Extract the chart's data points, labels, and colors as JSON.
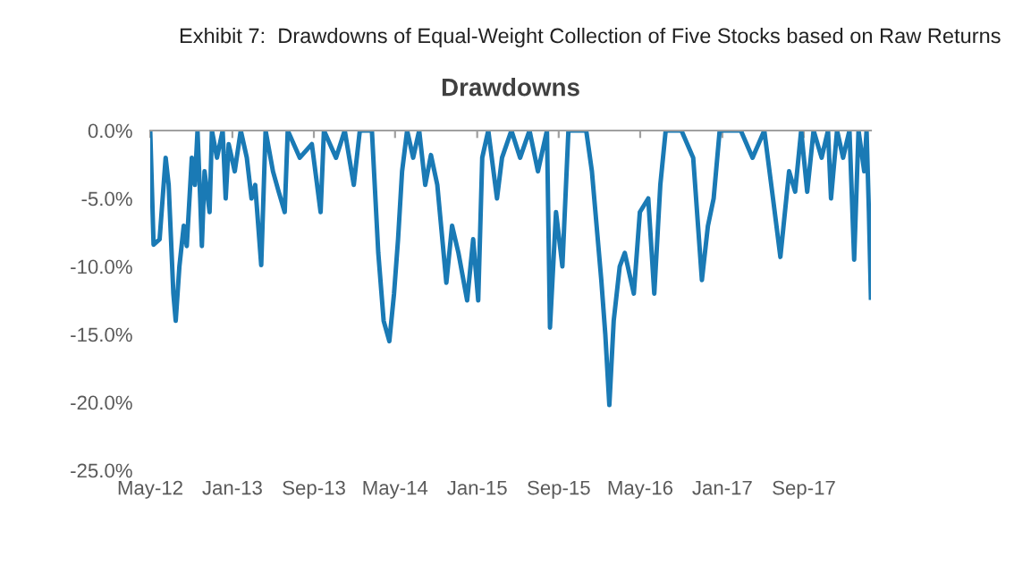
{
  "chart_data": {
    "type": "line",
    "title": "Exhibit 7:  Drawdowns of Equal-Weight Collection of Five Stocks based on Raw Returns",
    "subtitle": "Drawdowns",
    "x": [
      "2012-05-01",
      "2012-05-11",
      "2012-05-29",
      "2012-06-16",
      "2012-06-25",
      "2012-07-09",
      "2012-07-16",
      "2012-07-27",
      "2012-08-09",
      "2012-08-18",
      "2012-09-02",
      "2012-09-11",
      "2012-09-19",
      "2012-09-27",
      "2012-10-02",
      "2012-10-10",
      "2012-10-25",
      "2012-11-01",
      "2012-11-16",
      "2012-12-03",
      "2012-12-12",
      "2012-12-21",
      "2013-01-08",
      "2013-01-26",
      "2013-02-13",
      "2013-02-27",
      "2013-03-10",
      "2013-03-28",
      "2013-04-10",
      "2013-05-02",
      "2013-05-19",
      "2013-06-06",
      "2013-06-15",
      "2013-07-21",
      "2013-08-26",
      "2013-09-21",
      "2013-10-01",
      "2013-11-06",
      "2013-12-02",
      "2013-12-29",
      "2014-01-16",
      "2014-02-21",
      "2014-03-12",
      "2014-03-28",
      "2014-04-14",
      "2014-04-28",
      "2014-05-10",
      "2014-05-22",
      "2014-06-06",
      "2014-06-24",
      "2014-07-12",
      "2014-07-30",
      "2014-08-16",
      "2014-09-04",
      "2014-10-01",
      "2014-10-18",
      "2014-11-06",
      "2014-12-02",
      "2014-12-20",
      "2015-01-04",
      "2015-01-16",
      "2015-02-03",
      "2015-03-01",
      "2015-03-16",
      "2015-04-13",
      "2015-05-09",
      "2015-06-06",
      "2015-07-01",
      "2015-07-28",
      "2015-08-06",
      "2015-08-24",
      "2015-09-12",
      "2015-09-30",
      "2015-11-22",
      "2015-12-09",
      "2016-01-06",
      "2016-01-18",
      "2016-01-30",
      "2016-02-12",
      "2016-03-01",
      "2016-03-16",
      "2016-04-12",
      "2016-04-30",
      "2016-05-25",
      "2016-06-12",
      "2016-06-30",
      "2016-07-16",
      "2016-09-01",
      "2016-10-06",
      "2016-11-01",
      "2016-11-19",
      "2016-12-06",
      "2016-12-24",
      "2017-02-25",
      "2017-04-01",
      "2017-05-06",
      "2017-06-01",
      "2017-06-23",
      "2017-07-19",
      "2017-08-06",
      "2017-08-24",
      "2017-09-11",
      "2017-09-30",
      "2017-10-24",
      "2017-11-12",
      "2017-11-21",
      "2017-12-09",
      "2017-12-27",
      "2018-01-15",
      "2018-01-29",
      "2018-02-11",
      "2018-02-28",
      "2018-03-07",
      "2018-03-14",
      "2018-03-20"
    ],
    "series": [
      {
        "color": "#1a7ab5",
        "values": [
          0,
          -8.4,
          -8,
          -2,
          -4,
          -12,
          -14,
          -10,
          -7,
          -8.5,
          -2,
          -4,
          0,
          -5,
          -8.5,
          -3,
          -6,
          0,
          -2,
          0,
          -5,
          -1,
          -3,
          0,
          -2,
          -5,
          -4,
          -9.9,
          0,
          -3,
          -4.5,
          -6,
          0,
          -2,
          -1,
          -6,
          0,
          -2,
          0,
          -4,
          0,
          0,
          -9,
          -14,
          -15.5,
          -12,
          -8,
          -3,
          0,
          -2,
          0,
          -4,
          -1.8,
          -4,
          -11.2,
          -7,
          -9,
          -12.5,
          -8,
          -12.5,
          -2,
          0,
          -5,
          -2,
          0,
          -2,
          0,
          -3,
          0,
          -14.5,
          -6,
          -10,
          0,
          0,
          -3,
          -11,
          -15,
          -20.2,
          -14,
          -10,
          -9,
          -12,
          -6,
          -5,
          -12,
          -4,
          0,
          0,
          -2,
          -11,
          -7,
          -5,
          0,
          0,
          -2,
          0,
          -5,
          -9.3,
          -3,
          -4.5,
          0,
          -4.5,
          0,
          -2,
          0,
          -5,
          0,
          -2,
          0,
          -9.5,
          0,
          -3,
          0,
          -6,
          -12.3
        ]
      }
    ],
    "xlim": [
      "2012-05-01",
      "2018-03-20"
    ],
    "xticks": [
      {
        "value": "2012-05-01",
        "label": "May-12"
      },
      {
        "value": "2013-01-01",
        "label": "Jan-13"
      },
      {
        "value": "2013-09-01",
        "label": "Sep-13"
      },
      {
        "value": "2014-05-01",
        "label": "May-14"
      },
      {
        "value": "2015-01-01",
        "label": "Jan-15"
      },
      {
        "value": "2015-09-01",
        "label": "Sep-15"
      },
      {
        "value": "2016-05-01",
        "label": "May-16"
      },
      {
        "value": "2017-01-01",
        "label": "Jan-17"
      },
      {
        "value": "2017-09-01",
        "label": "Sep-17"
      }
    ],
    "ylim": [
      -25,
      0
    ],
    "yticks": [
      {
        "value": 0,
        "label": "0.0%"
      },
      {
        "value": -5,
        "label": "-5.0%"
      },
      {
        "value": -10,
        "label": "-10.0%"
      },
      {
        "value": -15,
        "label": "-15.0%"
      },
      {
        "value": -20,
        "label": "-20.0%"
      },
      {
        "value": -25,
        "label": "-25.0%"
      }
    ],
    "grid": false,
    "legend": false,
    "marker": "none",
    "line_style": "solid"
  }
}
